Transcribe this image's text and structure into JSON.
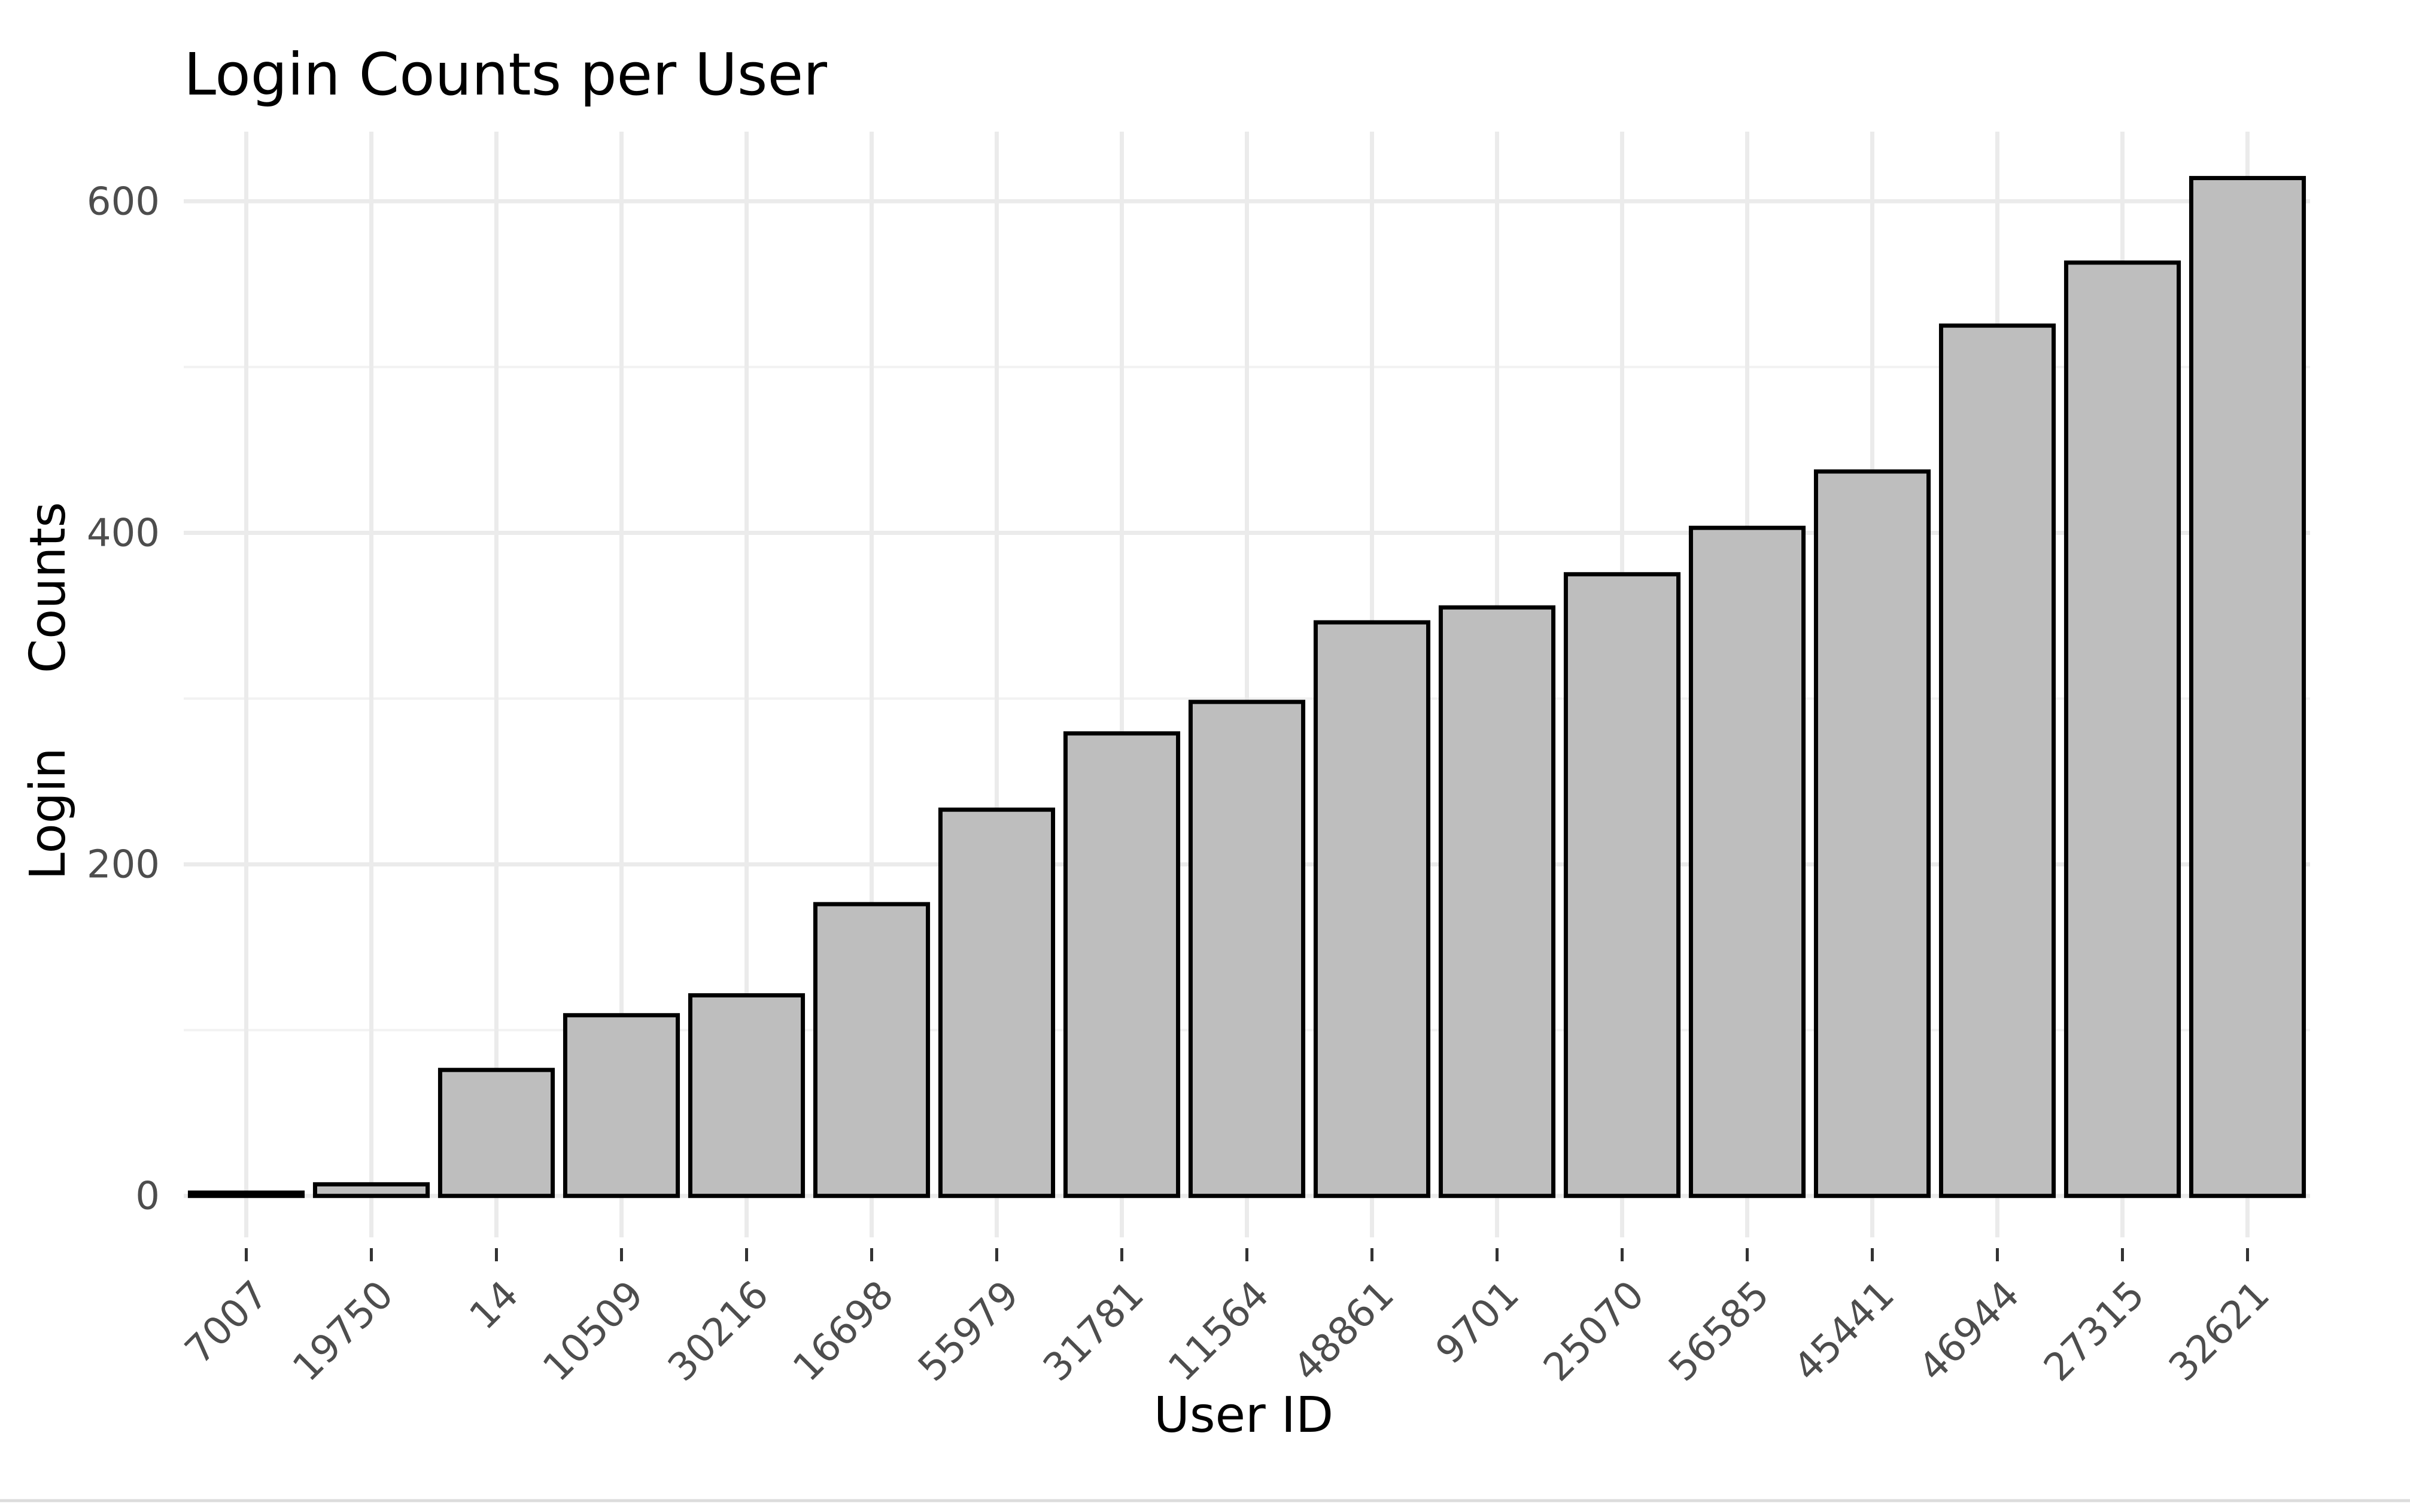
{
  "chart_data": {
    "type": "bar",
    "title": "Login Counts per User",
    "xlabel": "User ID",
    "ylabel_words": [
      "Login",
      "Counts"
    ],
    "categories": [
      "7007",
      "19750",
      "14",
      "10509",
      "30216",
      "16698",
      "55979",
      "31781",
      "11564",
      "48861",
      "9701",
      "25070",
      "56585",
      "45441",
      "46944",
      "27315",
      "32621"
    ],
    "values": [
      2,
      7,
      76,
      109,
      121,
      176,
      233,
      279,
      298,
      346,
      355,
      375,
      403,
      437,
      525,
      563,
      614
    ],
    "ylim": [
      -25,
      642
    ],
    "yticks": [
      0,
      200,
      400,
      600
    ],
    "yticks_minor": [
      100,
      300,
      500
    ],
    "grid": true,
    "legend": "none",
    "colors": {
      "bar_fill": "#bebebe",
      "bar_outline": "#000000",
      "grid": "#ebebeb",
      "tick_text": "#4d4d4d"
    }
  }
}
